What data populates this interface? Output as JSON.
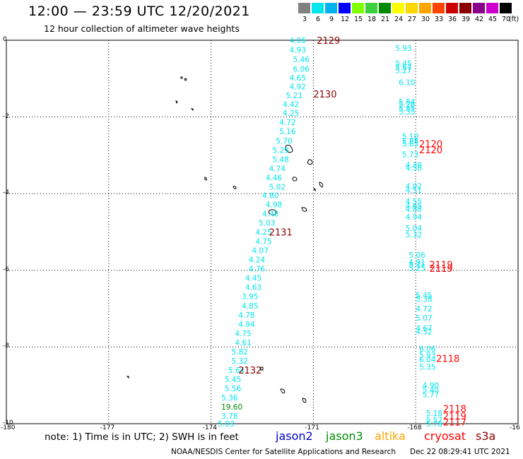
{
  "header": {
    "title": "12:00 — 23:59 UTC 12/20/2021",
    "subtitle": "12 hour collection of altimeter wave heights"
  },
  "legend": {
    "unit": "(ft)",
    "bins": [
      {
        "label": "3",
        "color": "#808080"
      },
      {
        "label": "6",
        "color": "#00e5ee"
      },
      {
        "label": "9",
        "color": "#00b2ee"
      },
      {
        "label": "12",
        "color": "#0000ff"
      },
      {
        "label": "15",
        "color": "#7fff00"
      },
      {
        "label": "18",
        "color": "#3cd03c"
      },
      {
        "label": "21",
        "color": "#008b00"
      },
      {
        "label": "24",
        "color": "#ffff00"
      },
      {
        "label": "27",
        "color": "#ffd700"
      },
      {
        "label": "30",
        "color": "#ffa500"
      },
      {
        "label": "33",
        "color": "#ff4500"
      },
      {
        "label": "36",
        "color": "#cd0000"
      },
      {
        "label": "39",
        "color": "#8b0000"
      },
      {
        "label": "42",
        "color": "#8b008b"
      },
      {
        "label": "45",
        "color": "#cd00cd"
      },
      {
        "label": "70",
        "color": "#000000"
      }
    ]
  },
  "axes": {
    "x_ticks": [
      "-180",
      "-177",
      "-174",
      "-171",
      "-168",
      "-16"
    ],
    "y_ticks": [
      "0",
      "-2",
      "-4",
      "-6",
      "-8",
      "-10"
    ],
    "lon_range": [
      -180,
      -165
    ],
    "lat_range": [
      -10,
      0
    ],
    "grid": true
  },
  "tracks": [
    {
      "label": "2129",
      "lon": -170.9,
      "lat": 0.0,
      "color": "#8b0000"
    },
    {
      "label": "2130",
      "lon": -171.0,
      "lat": -1.4,
      "color": "#8b0000"
    },
    {
      "label": "2131",
      "lon": -172.3,
      "lat": -5.0,
      "color": "#8b0000"
    },
    {
      "label": "2132",
      "lon": -173.2,
      "lat": -8.6,
      "color": "#8b0000"
    },
    {
      "label": "2120",
      "lon": -167.9,
      "lat": -2.7,
      "color": "#ff0000"
    },
    {
      "label": "2120",
      "lon": -167.9,
      "lat": -2.85,
      "color": "#ff0000"
    },
    {
      "label": "2119",
      "lon": -167.6,
      "lat": -5.85,
      "color": "#ff0000"
    },
    {
      "label": "2119",
      "lon": -167.6,
      "lat": -5.95,
      "color": "#ff0000"
    },
    {
      "label": "2118",
      "lon": -167.4,
      "lat": -8.3,
      "color": "#ff0000"
    },
    {
      "label": "2118",
      "lon": -167.2,
      "lat": -9.6,
      "color": "#ff0000"
    },
    {
      "label": "2119",
      "lon": -167.2,
      "lat": -9.8,
      "color": "#ff0000"
    },
    {
      "label": "2117",
      "lon": -167.2,
      "lat": -9.95,
      "color": "#ff0000"
    }
  ],
  "wave_heights": {
    "track_west": [
      {
        "v": "4.06",
        "lon": -171.7,
        "lat": 0.0
      },
      {
        "v": "4.93",
        "lon": -171.7,
        "lat": -0.25
      },
      {
        "v": "5.46",
        "lon": -171.6,
        "lat": -0.5
      },
      {
        "v": "6.06",
        "lon": -171.6,
        "lat": -0.75
      },
      {
        "v": "4.65",
        "lon": -171.7,
        "lat": -0.98
      },
      {
        "v": "4.92",
        "lon": -171.7,
        "lat": -1.21
      },
      {
        "v": "5.21",
        "lon": -171.8,
        "lat": -1.44
      },
      {
        "v": "4.42",
        "lon": -171.9,
        "lat": -1.67
      },
      {
        "v": "4.25",
        "lon": -171.9,
        "lat": -1.9
      },
      {
        "v": "4.72",
        "lon": -172.0,
        "lat": -2.14
      },
      {
        "v": "5.16",
        "lon": -172.0,
        "lat": -2.38
      },
      {
        "v": "5.70",
        "lon": -172.1,
        "lat": -2.62
      },
      {
        "v": "5.29",
        "lon": -172.2,
        "lat": -2.86
      },
      {
        "v": "5.48",
        "lon": -172.2,
        "lat": -3.1
      },
      {
        "v": "4.74",
        "lon": -172.3,
        "lat": -3.34
      },
      {
        "v": "4.46",
        "lon": -172.4,
        "lat": -3.58
      },
      {
        "v": "5.02",
        "lon": -172.3,
        "lat": -3.82
      },
      {
        "v": "4.80",
        "lon": -172.5,
        "lat": -4.04
      },
      {
        "v": "4.98",
        "lon": -172.4,
        "lat": -4.28
      },
      {
        "v": "4.48",
        "lon": -172.5,
        "lat": -4.52
      },
      {
        "v": "5.03",
        "lon": -172.6,
        "lat": -4.76
      },
      {
        "v": "4.25",
        "lon": -172.7,
        "lat": -5.0
      },
      {
        "v": "4.75",
        "lon": -172.7,
        "lat": -5.24
      },
      {
        "v": "4.07",
        "lon": -172.8,
        "lat": -5.48
      },
      {
        "v": "4.24",
        "lon": -172.9,
        "lat": -5.72
      },
      {
        "v": "4.76",
        "lon": -172.9,
        "lat": -5.96
      },
      {
        "v": "4.45",
        "lon": -173.0,
        "lat": -6.2
      },
      {
        "v": "4.63",
        "lon": -173.0,
        "lat": -6.44
      },
      {
        "v": "3.95",
        "lon": -173.1,
        "lat": -6.68
      },
      {
        "v": "4.85",
        "lon": -173.1,
        "lat": -6.92
      },
      {
        "v": "4.78",
        "lon": -173.2,
        "lat": -7.16
      },
      {
        "v": "4.94",
        "lon": -173.2,
        "lat": -7.4
      },
      {
        "v": "4.75",
        "lon": -173.3,
        "lat": -7.64
      },
      {
        "v": "4.61",
        "lon": -173.3,
        "lat": -7.88
      },
      {
        "v": "5.82",
        "lon": -173.4,
        "lat": -8.12
      },
      {
        "v": "5.32",
        "lon": -173.4,
        "lat": -8.36
      },
      {
        "v": "5.64",
        "lon": -173.5,
        "lat": -8.6
      },
      {
        "v": "5.45",
        "lon": -173.6,
        "lat": -8.84
      },
      {
        "v": "5.56",
        "lon": -173.6,
        "lat": -9.08
      },
      {
        "v": "5.36",
        "lon": -173.7,
        "lat": -9.32
      },
      {
        "v": "19.60",
        "lon": -173.7,
        "lat": -9.56,
        "color": "#008b00"
      },
      {
        "v": "3.78",
        "lon": -173.7,
        "lat": -9.8
      },
      {
        "v": "5.03",
        "lon": -173.8,
        "lat": -10.0
      }
    ],
    "track_east": [
      {
        "v": "5.93",
        "lon": -168.6,
        "lat": -0.2
      },
      {
        "v": "5.45",
        "lon": -168.6,
        "lat": -0.6
      },
      {
        "v": "5.67",
        "lon": -168.6,
        "lat": -0.7
      },
      {
        "v": "5.27",
        "lon": -168.6,
        "lat": -0.78
      },
      {
        "v": "6.10",
        "lon": -168.5,
        "lat": -1.1
      },
      {
        "v": "5.84",
        "lon": -168.5,
        "lat": -1.6
      },
      {
        "v": "5.26",
        "lon": -168.5,
        "lat": -1.68
      },
      {
        "v": "5.85",
        "lon": -168.5,
        "lat": -1.78
      },
      {
        "v": "5.35",
        "lon": -168.5,
        "lat": -1.86
      },
      {
        "v": "5.10",
        "lon": -168.4,
        "lat": -2.5
      },
      {
        "v": "5.88",
        "lon": -168.4,
        "lat": -2.62
      },
      {
        "v": "5.63",
        "lon": -168.4,
        "lat": -2.7
      },
      {
        "v": "5.73",
        "lon": -168.4,
        "lat": -2.97
      },
      {
        "v": "4.30",
        "lon": -168.3,
        "lat": -3.25
      },
      {
        "v": "4.58",
        "lon": -168.3,
        "lat": -3.32
      },
      {
        "v": "4.92",
        "lon": -168.3,
        "lat": -3.8
      },
      {
        "v": "4.51",
        "lon": -168.3,
        "lat": -3.9
      },
      {
        "v": "4.55",
        "lon": -168.3,
        "lat": -4.2
      },
      {
        "v": "4.65",
        "lon": -168.3,
        "lat": -4.32
      },
      {
        "v": "4.88",
        "lon": -168.3,
        "lat": -4.4
      },
      {
        "v": "4.94",
        "lon": -168.3,
        "lat": -4.6
      },
      {
        "v": "5.04",
        "lon": -168.3,
        "lat": -4.9
      },
      {
        "v": "5.32",
        "lon": -168.3,
        "lat": -5.06
      },
      {
        "v": "5.06",
        "lon": -168.2,
        "lat": -5.6
      },
      {
        "v": "4.91",
        "lon": -168.2,
        "lat": -5.78
      },
      {
        "v": "5.11",
        "lon": -168.2,
        "lat": -5.86
      },
      {
        "v": "5.25",
        "lon": -168.2,
        "lat": -5.94
      },
      {
        "v": "5.45",
        "lon": -168.0,
        "lat": -6.65
      },
      {
        "v": "5.38",
        "lon": -168.0,
        "lat": -6.74
      },
      {
        "v": "4.72",
        "lon": -168.0,
        "lat": -7.0
      },
      {
        "v": "5.07",
        "lon": -168.0,
        "lat": -7.24
      },
      {
        "v": "4.67",
        "lon": -168.0,
        "lat": -7.5
      },
      {
        "v": "4.52",
        "lon": -168.0,
        "lat": -7.6
      },
      {
        "v": "6.06",
        "lon": -167.9,
        "lat": -8.05
      },
      {
        "v": "5.93",
        "lon": -167.9,
        "lat": -8.2
      },
      {
        "v": "6.04",
        "lon": -167.9,
        "lat": -8.32
      },
      {
        "v": "5.35",
        "lon": -167.9,
        "lat": -8.52
      },
      {
        "v": "4.90",
        "lon": -167.8,
        "lat": -9.0
      },
      {
        "v": "5.40",
        "lon": -167.8,
        "lat": -9.12
      },
      {
        "v": "5.77",
        "lon": -167.8,
        "lat": -9.24
      },
      {
        "v": "5.18",
        "lon": -167.7,
        "lat": -9.72
      },
      {
        "v": "5.57",
        "lon": -167.7,
        "lat": -9.9
      },
      {
        "v": "5.78",
        "lon": -167.7,
        "lat": -10.0
      }
    ]
  },
  "footer": {
    "note": "note:  1) Time is in UTC; 2) SWH is in feet",
    "satellites": [
      {
        "name": "jason2",
        "color": "#0000cd"
      },
      {
        "name": "jason3",
        "color": "#008b00"
      },
      {
        "name": "altika",
        "color": "#ffa500"
      },
      {
        "name": "cryosat",
        "color": "#ff0000"
      },
      {
        "name": "s3a",
        "color": "#8b0000"
      }
    ],
    "credit": "NOAA/NESDIS Center for Satellite Applications and Research",
    "timestamp": "Dec 22 08:29:41 UTC 2021"
  }
}
